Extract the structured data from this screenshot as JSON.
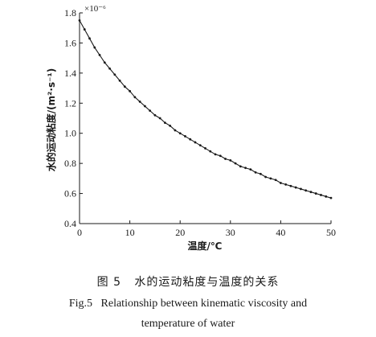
{
  "chart_data": {
    "type": "line",
    "title": "",
    "xlabel": "温度/℃",
    "ylabel": "水的运动粘度/(m²·s⁻¹)",
    "y_multiplier": "×10⁻⁶",
    "xlim": [
      0,
      50
    ],
    "ylim": [
      0.4,
      1.8
    ],
    "x_ticks": [
      0,
      10,
      20,
      30,
      40,
      50
    ],
    "y_ticks": [
      0.4,
      0.6,
      0.8,
      1.0,
      1.2,
      1.4,
      1.6,
      1.8
    ],
    "y_tick_labels": [
      "0.4",
      "0.6",
      "0.8",
      "1.0",
      "1.2",
      "1.4",
      "1.6",
      "1.8"
    ],
    "grid": false,
    "series": [
      {
        "x": [
          0,
          1,
          2,
          3,
          4,
          5,
          6,
          7,
          8,
          9,
          10,
          11,
          12,
          13,
          14,
          15,
          16,
          17,
          18,
          19,
          20,
          21,
          22,
          23,
          24,
          25,
          26,
          27,
          28,
          29,
          30,
          31,
          32,
          33,
          34,
          35,
          36,
          37,
          38,
          39,
          40,
          41,
          42,
          43,
          44,
          45,
          46,
          47,
          48,
          49,
          50
        ],
        "values": [
          1.75,
          1.69,
          1.63,
          1.57,
          1.52,
          1.47,
          1.43,
          1.39,
          1.35,
          1.31,
          1.28,
          1.24,
          1.21,
          1.18,
          1.15,
          1.12,
          1.1,
          1.07,
          1.05,
          1.02,
          1.0,
          0.98,
          0.96,
          0.94,
          0.92,
          0.9,
          0.88,
          0.86,
          0.85,
          0.83,
          0.82,
          0.8,
          0.78,
          0.77,
          0.76,
          0.74,
          0.73,
          0.71,
          0.7,
          0.69,
          0.67,
          0.66,
          0.65,
          0.64,
          0.63,
          0.62,
          0.61,
          0.6,
          0.59,
          0.58,
          0.57
        ],
        "color": "#1a1a1a"
      }
    ]
  },
  "caption": {
    "cn": "图 5   水的运动粘度与温度的关系",
    "en_line1": "Fig.5   Relationship between kinematic viscosity and",
    "en_line2": "temperature of water"
  }
}
